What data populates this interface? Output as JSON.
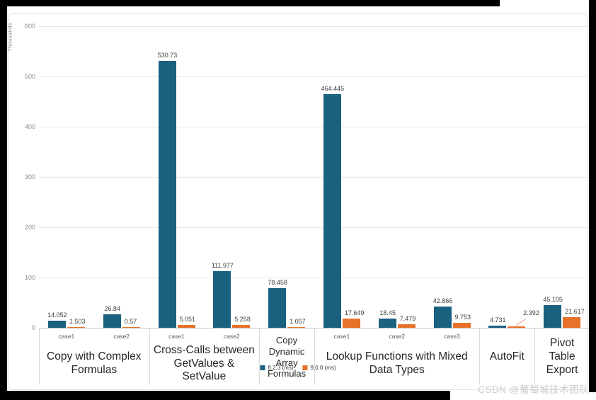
{
  "watermark": "CSDN @葡萄城技术团队",
  "chart_data": {
    "type": "bar",
    "title": "",
    "xlabel": "",
    "ylabel": "Thousands",
    "ylim": [
      0,
      600
    ],
    "yticks": [
      0,
      100,
      200,
      300,
      400,
      500,
      600
    ],
    "grid": true,
    "legend_position": "bottom-center",
    "series": [
      {
        "name": "8.2.3 (ms)",
        "color": "#1a607f"
      },
      {
        "name": "9.0.0 (ms)",
        "color": "#e77129"
      }
    ],
    "groups": [
      {
        "label": "Copy with Complex Formulas",
        "cases": [
          {
            "label": "case1",
            "values": [
              14.052,
              1.503
            ],
            "display": [
              "14.052",
              "1.503"
            ]
          },
          {
            "label": "case2",
            "values": [
              26.84,
              0.57
            ],
            "display": [
              "26.84",
              "0.57"
            ]
          }
        ]
      },
      {
        "label": "Cross-Calls between GetValues & SetValue",
        "cases": [
          {
            "label": "case1",
            "values": [
              530.73,
              5.051
            ],
            "display": [
              "530.73",
              "5.051"
            ]
          },
          {
            "label": "case2",
            "values": [
              111.977,
              5.258
            ],
            "display": [
              "111.977",
              "5.258"
            ]
          }
        ]
      },
      {
        "label": "Copy Dynamic Array Formulas",
        "cases": [
          {
            "label": "",
            "values": [
              78.458,
              1.057
            ],
            "display": [
              "78.458",
              "1.057"
            ]
          }
        ]
      },
      {
        "label": "Lookup Functions with Mixed Data Types",
        "cases": [
          {
            "label": "case1",
            "values": [
              464.445,
              17.649
            ],
            "display": [
              "464.445",
              "17.649"
            ]
          },
          {
            "label": "case2",
            "values": [
              18.45,
              7.479
            ],
            "display": [
              "18.45",
              "7.479"
            ]
          },
          {
            "label": "case3",
            "values": [
              42.866,
              9.753
            ],
            "display": [
              "42.866",
              "9.753"
            ]
          }
        ]
      },
      {
        "label": "AutoFit",
        "cases": [
          {
            "label": "",
            "values": [
              4.731,
              2.392
            ],
            "display": [
              "4.731",
              "2.392"
            ]
          }
        ]
      },
      {
        "label": "Pivot Table Export",
        "cases": [
          {
            "label": "",
            "values": [
              45.105,
              21.617
            ],
            "display": [
              "45.105",
              "21.617"
            ]
          }
        ]
      }
    ]
  }
}
